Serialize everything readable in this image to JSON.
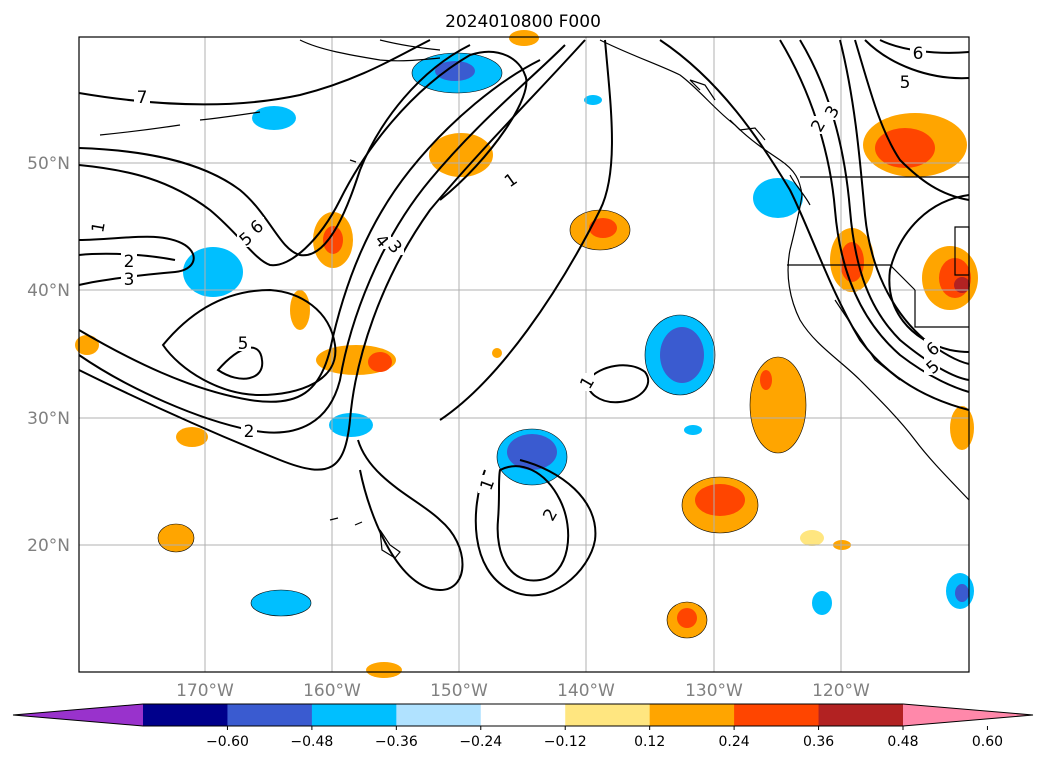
{
  "title": "2024010800 F000",
  "map": {
    "lon_labels": [
      "170°W",
      "160°W",
      "150°W",
      "140°W",
      "130°W",
      "120°W"
    ],
    "lat_labels": [
      "50°N",
      "40°N",
      "30°N",
      "20°N"
    ],
    "extent": {
      "lon_min": -180,
      "lon_max": -110,
      "lat_min": 10,
      "lat_max": 60
    },
    "gridlines": true
  },
  "contour_labels": [
    "7",
    "6",
    "5",
    "4",
    "3",
    "2",
    "1"
  ],
  "colorbar": {
    "ticks": [
      "−0.60",
      "−0.48",
      "−0.36",
      "−0.24",
      "−0.12",
      "0.12",
      "0.24",
      "0.36",
      "0.48",
      "0.60"
    ],
    "colors": [
      "#9932cc",
      "#00008b",
      "#3a5bd0",
      "#00bfff",
      "#b0e2ff",
      "#ffffff",
      "#ffe680",
      "#ffa500",
      "#ff4500",
      "#b22222",
      "#ff88aa"
    ],
    "extend": "both"
  }
}
